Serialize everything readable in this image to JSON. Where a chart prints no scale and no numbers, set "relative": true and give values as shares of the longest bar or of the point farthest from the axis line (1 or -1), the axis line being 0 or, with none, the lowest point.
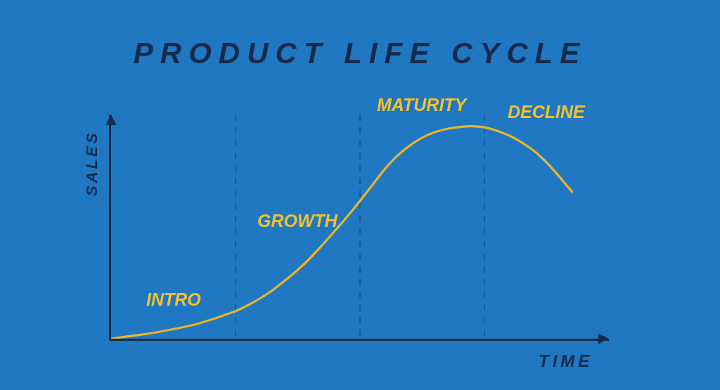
{
  "chart_data": {
    "type": "line",
    "title": "PRODUCT LIFE CYCLE",
    "xlabel": "TIME",
    "ylabel": "SALES",
    "relative": true,
    "grid": "x",
    "categories": [
      null,
      null,
      null,
      null,
      null,
      null,
      null,
      null,
      null,
      null,
      null,
      null,
      null,
      null,
      null,
      null,
      null,
      null,
      null,
      null,
      null,
      null,
      null,
      null,
      null,
      null,
      null,
      null,
      null,
      null,
      null,
      null,
      null,
      null,
      null,
      null,
      null,
      null
    ],
    "series": [
      {
        "color": "#e9b52c",
        "values": [
          0,
          0.008,
          0.016,
          0.024,
          0.034,
          0.045,
          0.057,
          0.071,
          0.089,
          0.109,
          0.13,
          0.158,
          0.191,
          0.23,
          0.276,
          0.325,
          0.381,
          0.444,
          0.51,
          0.578,
          0.65,
          0.725,
          0.8,
          0.862,
          0.91,
          0.947,
          0.972,
          0.988,
          0.997,
          1.0,
          0.994,
          0.978,
          0.955,
          0.922,
          0.881,
          0.827,
          0.761,
          0.691
        ]
      }
    ],
    "annotations": [
      "INTRO",
      "GROWTH",
      "MATURITY",
      "DECLINE"
    ]
  }
}
